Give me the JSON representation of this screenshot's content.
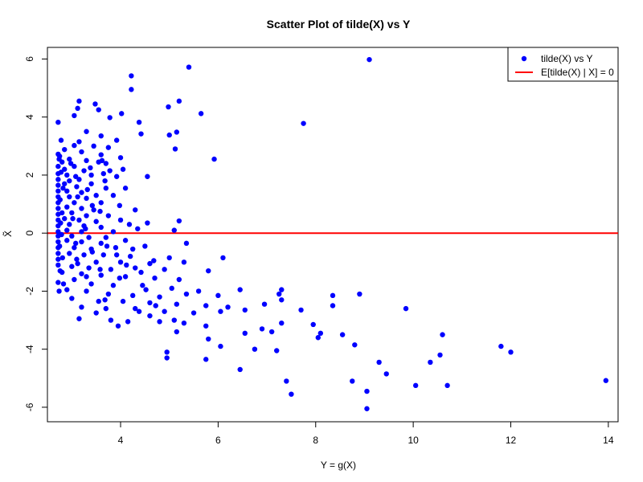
{
  "chart_data": {
    "type": "scatter",
    "title": "Scatter Plot of tilde(X) vs Y",
    "xlabel": "Y = g(X)",
    "ylabel": "X̃",
    "xlim": [
      2.5,
      14.2
    ],
    "ylim": [
      -6.5,
      6.4
    ],
    "xticks": [
      4,
      6,
      8,
      10,
      12,
      14
    ],
    "yticks": [
      -6,
      -4,
      -2,
      0,
      2,
      4,
      6
    ],
    "xtick_labels": [
      "4",
      "6",
      "8",
      "10",
      "12",
      "14"
    ],
    "ytick_labels": [
      "-6",
      "-4",
      "-2",
      "0",
      "2",
      "4",
      "6"
    ],
    "grid": false,
    "legend_position": "top-right",
    "series": [
      {
        "name": "tilde(X) vs Y",
        "kind": "points",
        "color": "#0000ff",
        "points": [
          [
            9.1,
            5.98
          ],
          [
            5.4,
            5.72
          ],
          [
            4.22,
            5.42
          ],
          [
            4.22,
            4.95
          ],
          [
            3.15,
            4.55
          ],
          [
            3.48,
            4.45
          ],
          [
            5.2,
            4.55
          ],
          [
            4.98,
            4.35
          ],
          [
            3.12,
            4.3
          ],
          [
            3.55,
            4.25
          ],
          [
            5.65,
            4.12
          ],
          [
            4.02,
            4.12
          ],
          [
            3.05,
            4.05
          ],
          [
            3.78,
            3.98
          ],
          [
            2.72,
            3.82
          ],
          [
            4.38,
            3.82
          ],
          [
            7.75,
            3.78
          ],
          [
            3.3,
            3.5
          ],
          [
            5.15,
            3.48
          ],
          [
            5.0,
            3.38
          ],
          [
            3.6,
            3.35
          ],
          [
            2.78,
            3.2
          ],
          [
            3.15,
            3.15
          ],
          [
            3.92,
            3.2
          ],
          [
            4.42,
            3.42
          ],
          [
            3.05,
            3.02
          ],
          [
            3.45,
            3.0
          ],
          [
            5.12,
            2.9
          ],
          [
            3.75,
            2.95
          ],
          [
            2.85,
            2.88
          ],
          [
            2.72,
            2.72
          ],
          [
            2.75,
            2.65
          ],
          [
            3.2,
            2.8
          ],
          [
            3.6,
            2.7
          ],
          [
            5.92,
            2.55
          ],
          [
            4.0,
            2.6
          ],
          [
            2.95,
            2.55
          ],
          [
            2.8,
            2.45
          ],
          [
            3.3,
            2.5
          ],
          [
            3.55,
            2.45
          ],
          [
            3.7,
            2.4
          ],
          [
            4.05,
            2.2
          ],
          [
            3.78,
            2.15
          ],
          [
            2.72,
            2.3
          ],
          [
            2.85,
            2.2
          ],
          [
            3.05,
            2.3
          ],
          [
            3.25,
            2.15
          ],
          [
            2.72,
            2.05
          ],
          [
            2.9,
            2.0
          ],
          [
            3.4,
            2.0
          ],
          [
            4.55,
            1.95
          ],
          [
            3.65,
            2.05
          ],
          [
            2.72,
            1.85
          ],
          [
            2.95,
            1.8
          ],
          [
            3.15,
            1.85
          ],
          [
            2.72,
            1.65
          ],
          [
            2.85,
            1.7
          ],
          [
            3.1,
            1.6
          ],
          [
            3.4,
            1.7
          ],
          [
            3.7,
            1.55
          ],
          [
            4.1,
            1.55
          ],
          [
            2.72,
            1.45
          ],
          [
            2.9,
            1.45
          ],
          [
            3.2,
            1.4
          ],
          [
            2.72,
            1.25
          ],
          [
            2.95,
            1.25
          ],
          [
            3.3,
            1.2
          ],
          [
            3.5,
            1.3
          ],
          [
            3.85,
            1.3
          ],
          [
            2.72,
            1.05
          ],
          [
            3.05,
            1.05
          ],
          [
            3.6,
            1.05
          ],
          [
            2.72,
            0.85
          ],
          [
            2.9,
            0.9
          ],
          [
            3.2,
            0.85
          ],
          [
            3.45,
            0.8
          ],
          [
            4.3,
            0.8
          ],
          [
            2.72,
            0.65
          ],
          [
            3.0,
            0.7
          ],
          [
            3.3,
            0.6
          ],
          [
            3.75,
            0.6
          ],
          [
            2.72,
            0.45
          ],
          [
            2.85,
            0.5
          ],
          [
            3.15,
            0.45
          ],
          [
            3.5,
            0.4
          ],
          [
            4.0,
            0.45
          ],
          [
            4.55,
            0.35
          ],
          [
            5.2,
            0.42
          ],
          [
            2.72,
            0.25
          ],
          [
            2.95,
            0.3
          ],
          [
            3.25,
            0.25
          ],
          [
            3.6,
            0.2
          ],
          [
            2.72,
            0.05
          ],
          [
            2.9,
            0.1
          ],
          [
            3.2,
            0.05
          ],
          [
            3.85,
            0.05
          ],
          [
            4.35,
            0.15
          ],
          [
            5.1,
            0.1
          ],
          [
            2.72,
            -0.1
          ],
          [
            3.0,
            -0.1
          ],
          [
            3.35,
            -0.15
          ],
          [
            3.7,
            -0.15
          ],
          [
            2.72,
            -0.3
          ],
          [
            2.9,
            -0.25
          ],
          [
            3.2,
            -0.3
          ],
          [
            3.6,
            -0.35
          ],
          [
            4.1,
            -0.25
          ],
          [
            5.35,
            -0.35
          ],
          [
            2.72,
            -0.5
          ],
          [
            3.05,
            -0.5
          ],
          [
            3.4,
            -0.55
          ],
          [
            3.9,
            -0.5
          ],
          [
            4.5,
            -0.45
          ],
          [
            2.72,
            -0.7
          ],
          [
            2.95,
            -0.7
          ],
          [
            3.25,
            -0.75
          ],
          [
            3.65,
            -0.75
          ],
          [
            4.2,
            -0.8
          ],
          [
            5.0,
            -0.85
          ],
          [
            6.1,
            -0.85
          ],
          [
            2.72,
            -0.9
          ],
          [
            3.1,
            -0.9
          ],
          [
            3.5,
            -1.0
          ],
          [
            4.0,
            -1.0
          ],
          [
            4.6,
            -1.05
          ],
          [
            5.3,
            -1.0
          ],
          [
            2.72,
            -1.1
          ],
          [
            3.0,
            -1.15
          ],
          [
            3.35,
            -1.2
          ],
          [
            3.8,
            -1.25
          ],
          [
            4.3,
            -1.2
          ],
          [
            4.9,
            -1.25
          ],
          [
            5.8,
            -1.3
          ],
          [
            2.8,
            -1.35
          ],
          [
            3.2,
            -1.4
          ],
          [
            3.6,
            -1.45
          ],
          [
            4.1,
            -1.5
          ],
          [
            4.7,
            -1.55
          ],
          [
            5.2,
            -1.6
          ],
          [
            2.72,
            -1.7
          ],
          [
            3.05,
            -1.6
          ],
          [
            3.4,
            -1.75
          ],
          [
            3.85,
            -1.8
          ],
          [
            4.45,
            -1.8
          ],
          [
            5.05,
            -1.9
          ],
          [
            5.6,
            -2.0
          ],
          [
            6.45,
            -1.95
          ],
          [
            7.3,
            -1.95
          ],
          [
            2.9,
            -1.95
          ],
          [
            3.3,
            -2.0
          ],
          [
            3.75,
            -2.1
          ],
          [
            4.25,
            -2.15
          ],
          [
            4.8,
            -2.2
          ],
          [
            5.35,
            -2.1
          ],
          [
            6.0,
            -2.15
          ],
          [
            7.25,
            -2.1
          ],
          [
            8.35,
            -2.15
          ],
          [
            8.9,
            -2.1
          ],
          [
            3.0,
            -2.25
          ],
          [
            3.55,
            -2.35
          ],
          [
            4.05,
            -2.35
          ],
          [
            4.6,
            -2.4
          ],
          [
            5.15,
            -2.45
          ],
          [
            5.75,
            -2.5
          ],
          [
            6.2,
            -2.55
          ],
          [
            6.95,
            -2.45
          ],
          [
            7.3,
            -2.3
          ],
          [
            8.35,
            -2.5
          ],
          [
            3.2,
            -2.55
          ],
          [
            3.7,
            -2.6
          ],
          [
            4.3,
            -2.6
          ],
          [
            4.9,
            -2.7
          ],
          [
            5.5,
            -2.75
          ],
          [
            6.05,
            -2.7
          ],
          [
            6.55,
            -2.65
          ],
          [
            7.7,
            -2.65
          ],
          [
            9.85,
            -2.6
          ],
          [
            3.5,
            -2.75
          ],
          [
            4.6,
            -2.85
          ],
          [
            5.1,
            -3.0
          ],
          [
            5.75,
            -3.2
          ],
          [
            3.15,
            -2.95
          ],
          [
            3.8,
            -3.0
          ],
          [
            4.15,
            -3.05
          ],
          [
            4.8,
            -3.05
          ],
          [
            5.3,
            -3.1
          ],
          [
            7.95,
            -3.15
          ],
          [
            3.95,
            -3.2
          ],
          [
            5.15,
            -3.4
          ],
          [
            6.55,
            -3.45
          ],
          [
            6.9,
            -3.3
          ],
          [
            7.1,
            -3.4
          ],
          [
            7.3,
            -3.1
          ],
          [
            8.1,
            -3.45
          ],
          [
            8.55,
            -3.5
          ],
          [
            10.6,
            -3.5
          ],
          [
            5.8,
            -3.65
          ],
          [
            8.05,
            -3.6
          ],
          [
            6.05,
            -3.9
          ],
          [
            6.75,
            -4.0
          ],
          [
            7.2,
            -4.05
          ],
          [
            8.8,
            -3.85
          ],
          [
            4.95,
            -4.1
          ],
          [
            11.8,
            -3.9
          ],
          [
            12.0,
            -4.1
          ],
          [
            10.55,
            -4.2
          ],
          [
            5.75,
            -4.35
          ],
          [
            4.95,
            -4.3
          ],
          [
            9.3,
            -4.45
          ],
          [
            10.35,
            -4.45
          ],
          [
            6.45,
            -4.7
          ],
          [
            9.45,
            -4.85
          ],
          [
            7.4,
            -5.1
          ],
          [
            8.75,
            -5.1
          ],
          [
            10.05,
            -5.25
          ],
          [
            10.7,
            -5.25
          ],
          [
            13.95,
            -5.08
          ],
          [
            9.05,
            -5.45
          ],
          [
            7.5,
            -5.55
          ],
          [
            9.05,
            -6.05
          ],
          [
            2.74,
            2.55
          ],
          [
            2.78,
            2.1
          ],
          [
            2.82,
            1.55
          ],
          [
            2.76,
            1.15
          ],
          [
            2.8,
            0.7
          ],
          [
            2.77,
            0.35
          ],
          [
            2.79,
            -0.05
          ],
          [
            2.75,
            -0.45
          ],
          [
            2.81,
            -0.85
          ],
          [
            2.76,
            -1.3
          ],
          [
            2.83,
            -1.75
          ],
          [
            2.74,
            -2.0
          ],
          [
            2.98,
            2.4
          ],
          [
            3.08,
            1.95
          ],
          [
            3.12,
            1.25
          ],
          [
            3.02,
            0.5
          ],
          [
            3.08,
            -0.35
          ],
          [
            3.12,
            -1.05
          ],
          [
            3.38,
            2.25
          ],
          [
            3.32,
            1.5
          ],
          [
            3.42,
            0.95
          ],
          [
            3.28,
            0.15
          ],
          [
            3.42,
            -0.65
          ],
          [
            3.3,
            -1.5
          ],
          [
            3.62,
            2.5
          ],
          [
            3.68,
            1.8
          ],
          [
            3.58,
            0.75
          ],
          [
            3.72,
            -0.45
          ],
          [
            3.58,
            -1.25
          ],
          [
            3.68,
            -2.3
          ],
          [
            3.92,
            1.95
          ],
          [
            3.98,
            0.95
          ],
          [
            3.92,
            -0.75
          ],
          [
            3.98,
            -1.55
          ],
          [
            4.12,
            -1.1
          ],
          [
            4.18,
            0.3
          ],
          [
            4.25,
            -0.55
          ],
          [
            4.42,
            -1.35
          ],
          [
            4.52,
            -1.95
          ],
          [
            4.38,
            -2.7
          ],
          [
            4.68,
            -0.95
          ],
          [
            4.72,
            -2.5
          ]
        ]
      },
      {
        "name": "E[tilde(X) | X] = 0",
        "kind": "hline",
        "color": "#ff0000",
        "y": 0
      }
    ]
  }
}
